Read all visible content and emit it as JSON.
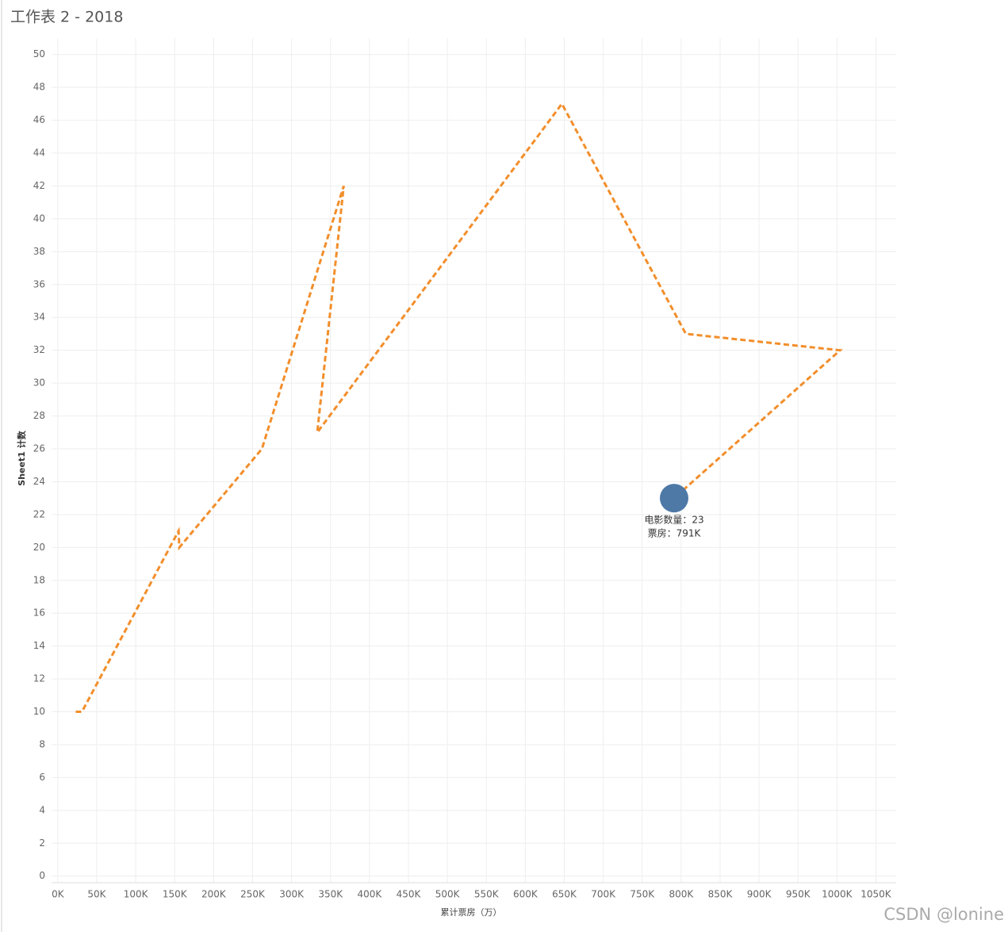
{
  "chart_data": {
    "type": "line",
    "title": "工作表 2 - 2018",
    "x_label": "累计票房（万）",
    "y_label": "Sheet1 计数",
    "x": [
      23000,
      31000,
      155000,
      156000,
      262000,
      367000,
      333000,
      647000,
      806000,
      1004000,
      791000
    ],
    "values": [
      10,
      10,
      21,
      20,
      26,
      42,
      27,
      47,
      33,
      32,
      23
    ],
    "color": "#f28e2b",
    "dashed": true,
    "highlight_color": "#4e79a7",
    "annotations": [
      "电影数量：23",
      "票房：791K"
    ],
    "xlim": [
      -8000,
      1076000
    ],
    "ylim": [
      -0.4,
      51
    ],
    "xticks": [
      {
        "value": 0,
        "label": "0K"
      },
      {
        "value": 50000,
        "label": "50K"
      },
      {
        "value": 100000,
        "label": "100K"
      },
      {
        "value": 150000,
        "label": "150K"
      },
      {
        "value": 200000,
        "label": "200K"
      },
      {
        "value": 250000,
        "label": "250K"
      },
      {
        "value": 300000,
        "label": "300K"
      },
      {
        "value": 350000,
        "label": "350K"
      },
      {
        "value": 400000,
        "label": "400K"
      },
      {
        "value": 450000,
        "label": "450K"
      },
      {
        "value": 500000,
        "label": "500K"
      },
      {
        "value": 550000,
        "label": "550K"
      },
      {
        "value": 600000,
        "label": "600K"
      },
      {
        "value": 650000,
        "label": "650K"
      },
      {
        "value": 700000,
        "label": "700K"
      },
      {
        "value": 750000,
        "label": "750K"
      },
      {
        "value": 800000,
        "label": "800K"
      },
      {
        "value": 850000,
        "label": "850K"
      },
      {
        "value": 900000,
        "label": "900K"
      },
      {
        "value": 950000,
        "label": "950K"
      },
      {
        "value": 1000000,
        "label": "1000K"
      },
      {
        "value": 1050000,
        "label": "1050K"
      }
    ],
    "yticks": [
      0,
      2,
      4,
      6,
      8,
      10,
      12,
      14,
      16,
      18,
      20,
      22,
      24,
      26,
      28,
      30,
      32,
      34,
      36,
      38,
      40,
      42,
      44,
      46,
      48,
      50
    ],
    "grid": true
  },
  "watermark": "CSDN @lonine"
}
